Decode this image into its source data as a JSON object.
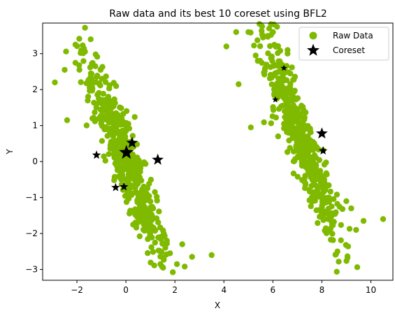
{
  "chart_data": {
    "type": "scatter",
    "title": "Raw data and its best 10 coreset using BFL2",
    "xlabel": "X",
    "ylabel": "Y",
    "xlim": [
      -3.4,
      10.9
    ],
    "ylim": [
      -3.3,
      3.85
    ],
    "xticks": [
      -2,
      0,
      2,
      4,
      6,
      8,
      10
    ],
    "yticks": [
      -3,
      -2,
      -1,
      0,
      1,
      2,
      3
    ],
    "grid": false,
    "legend_position": "top-right",
    "colors": {
      "raw": "#7fba00",
      "coreset": "#000000"
    },
    "raw_clusters": [
      {
        "center": [
          0.0,
          0.0
        ],
        "count": 520,
        "sd_major": 1.35,
        "sd_minor": 0.28,
        "angle_deg": -52
      },
      {
        "center": [
          7.0,
          0.9
        ],
        "count": 520,
        "sd_major": 1.35,
        "sd_minor": 0.28,
        "angle_deg": -52
      }
    ],
    "raw_outliers": [
      [
        -2.9,
        2.2
      ],
      [
        -2.5,
        2.55
      ],
      [
        -1.9,
        2.55
      ],
      [
        -2.4,
        1.15
      ],
      [
        -1.4,
        2.3
      ],
      [
        -0.4,
        2.1
      ],
      [
        2.4,
        -2.92
      ],
      [
        3.5,
        -2.6
      ],
      [
        2.7,
        -2.65
      ],
      [
        2.3,
        -2.3
      ],
      [
        1.8,
        -2.55
      ],
      [
        4.5,
        3.6
      ],
      [
        5.0,
        3.6
      ],
      [
        4.1,
        3.2
      ],
      [
        5.1,
        0.95
      ],
      [
        4.6,
        2.15
      ],
      [
        5.6,
        3.45
      ],
      [
        9.4,
        -1.9
      ],
      [
        10.5,
        -1.6
      ],
      [
        9.7,
        -1.65
      ],
      [
        9.2,
        -1.3
      ],
      [
        9.0,
        -1.1
      ],
      [
        6.6,
        3.0
      ],
      [
        6.6,
        3.1
      ]
    ],
    "series": [
      {
        "name": "Raw Data"
      },
      {
        "name": "Coreset",
        "points": [
          {
            "x": 0.02,
            "y": 0.25,
            "size": 20
          },
          {
            "x": 0.25,
            "y": 0.52,
            "size": 16
          },
          {
            "x": 1.3,
            "y": 0.05,
            "size": 16
          },
          {
            "x": -1.2,
            "y": 0.18,
            "size": 12
          },
          {
            "x": -0.42,
            "y": -0.72,
            "size": 12
          },
          {
            "x": -0.08,
            "y": -0.7,
            "size": 12
          },
          {
            "x": 6.45,
            "y": 2.6,
            "size": 9
          },
          {
            "x": 6.1,
            "y": 1.72,
            "size": 9
          },
          {
            "x": 8.0,
            "y": 0.78,
            "size": 16
          },
          {
            "x": 8.05,
            "y": 0.3,
            "size": 12
          }
        ]
      }
    ]
  }
}
